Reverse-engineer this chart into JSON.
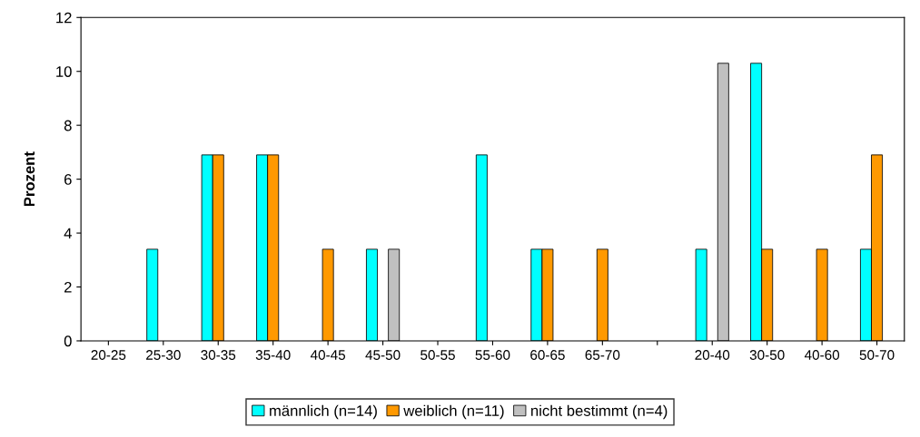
{
  "chart_data": {
    "type": "bar",
    "ylabel": "Prozent",
    "categories": [
      "20-25",
      "25-30",
      "30-35",
      "35-40",
      "40-45",
      "45-50",
      "50-55",
      "55-60",
      "60-65",
      "65-70",
      null,
      "20-40",
      "30-50",
      "40-60",
      "50-70"
    ],
    "series": [
      {
        "name": "männlich (n=14)",
        "color": "#00ffff",
        "values": [
          null,
          3.4,
          6.9,
          6.9,
          null,
          3.4,
          null,
          6.9,
          3.4,
          null,
          null,
          3.4,
          10.3,
          null,
          3.4
        ]
      },
      {
        "name": "weiblich (n=11)",
        "color": "#ff9900",
        "values": [
          null,
          null,
          6.9,
          6.9,
          3.4,
          null,
          null,
          null,
          3.4,
          3.4,
          null,
          null,
          3.4,
          3.4,
          6.9
        ]
      },
      {
        "name": "nicht bestimmt (n=4)",
        "color": "#c0c0c0",
        "values": [
          null,
          null,
          null,
          null,
          null,
          3.4,
          null,
          null,
          null,
          null,
          null,
          10.3,
          null,
          null,
          null
        ]
      }
    ],
    "ylim": [
      0,
      12
    ],
    "yticks": [
      0,
      2,
      4,
      6,
      8,
      10,
      12
    ],
    "grid": false,
    "legend": "bottom"
  }
}
